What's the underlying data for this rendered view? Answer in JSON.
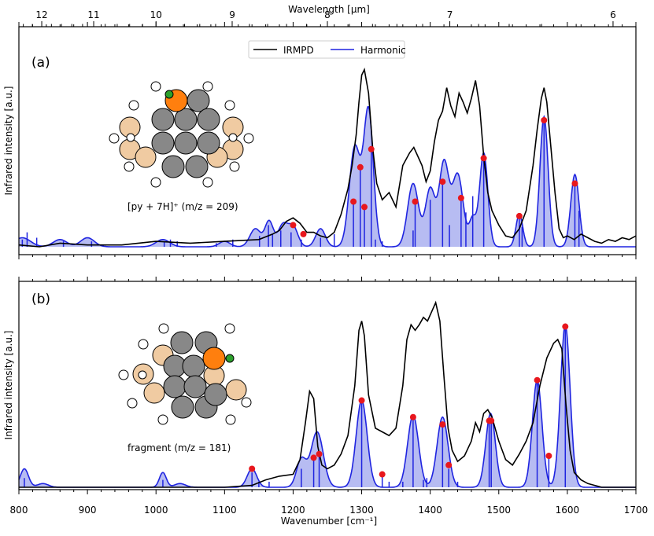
{
  "figure": {
    "top_axis_label": "Wavelength [μm]",
    "x_axis_label": "Wavenumber [cm⁻¹]",
    "y_axis_label": "Infrared intensity [a.u.]",
    "legend": {
      "irmpd": "IRMPD",
      "harmonic": "Harmonic"
    },
    "colors": {
      "irmpd": "#000000",
      "harmonic": "#1f24e0",
      "harmonic_fill": "#aab0f0",
      "marker": "#e8171d",
      "orange": "#ff7f0e",
      "beige": "#f0cba2",
      "gray": "#888888",
      "green": "#2ca02c"
    }
  },
  "chart_data": [
    {
      "type": "line",
      "panel_label": "(a)",
      "annotation": "[py + 7H]⁺ (m/z = 209)",
      "xlim": [
        800,
        1700
      ],
      "x_ticks": [
        800,
        900,
        1000,
        1100,
        1200,
        1300,
        1400,
        1500,
        1600,
        1700
      ],
      "top_ticks_um": [
        12,
        11,
        10,
        9,
        8,
        7,
        6
      ],
      "legend_position": "top-center",
      "series": [
        {
          "name": "IRMPD",
          "x": [
            800,
            830,
            860,
            900,
            950,
            1000,
            1050,
            1100,
            1150,
            1170,
            1180,
            1190,
            1200,
            1210,
            1220,
            1230,
            1240,
            1250,
            1260,
            1270,
            1280,
            1286,
            1292,
            1296,
            1300,
            1304,
            1310,
            1316,
            1322,
            1330,
            1340,
            1350,
            1360,
            1370,
            1376,
            1382,
            1388,
            1394,
            1400,
            1406,
            1412,
            1418,
            1424,
            1430,
            1436,
            1442,
            1448,
            1454,
            1460,
            1466,
            1472,
            1478,
            1484,
            1490,
            1500,
            1510,
            1520,
            1530,
            1540,
            1550,
            1556,
            1562,
            1566,
            1570,
            1576,
            1582,
            1588,
            1594,
            1600,
            1610,
            1620,
            1630,
            1640,
            1650,
            1660,
            1670,
            1680,
            1690,
            1700
          ],
          "y": [
            0.01,
            0.0,
            0.02,
            0.01,
            0.01,
            0.03,
            0.02,
            0.03,
            0.04,
            0.07,
            0.09,
            0.14,
            0.16,
            0.13,
            0.08,
            0.08,
            0.06,
            0.05,
            0.08,
            0.18,
            0.32,
            0.45,
            0.62,
            0.8,
            0.95,
            0.98,
            0.85,
            0.55,
            0.35,
            0.26,
            0.3,
            0.22,
            0.45,
            0.52,
            0.55,
            0.5,
            0.45,
            0.36,
            0.42,
            0.58,
            0.7,
            0.75,
            0.88,
            0.78,
            0.72,
            0.85,
            0.8,
            0.74,
            0.82,
            0.92,
            0.78,
            0.5,
            0.3,
            0.2,
            0.12,
            0.06,
            0.05,
            0.1,
            0.2,
            0.45,
            0.65,
            0.82,
            0.88,
            0.8,
            0.55,
            0.3,
            0.1,
            0.05,
            0.06,
            0.04,
            0.07,
            0.05,
            0.03,
            0.02,
            0.04,
            0.03,
            0.05,
            0.04,
            0.06
          ]
        },
        {
          "name": "Harmonic",
          "sticks": [
            [
              805,
              0.04
            ],
            [
              812,
              0.08
            ],
            [
              826,
              0.05
            ],
            [
              865,
              0.03
            ],
            [
              906,
              0.03
            ],
            [
              1012,
              0.03
            ],
            [
              1021,
              0.04
            ],
            [
              1031,
              0.03
            ],
            [
              1088,
              0.02
            ],
            [
              1112,
              0.04
            ],
            [
              1151,
              0.06
            ],
            [
              1164,
              0.12
            ],
            [
              1170,
              0.07
            ],
            [
              1182,
              0.09
            ],
            [
              1197,
              0.08
            ],
            [
              1212,
              0.04
            ],
            [
              1240,
              0.05
            ],
            [
              1260,
              0.07
            ],
            [
              1288,
              0.25
            ],
            [
              1298,
              0.44
            ],
            [
              1304,
              0.22
            ],
            [
              1314,
              0.54
            ],
            [
              1320,
              0.04
            ],
            [
              1330,
              0.03
            ],
            [
              1375,
              0.09
            ],
            [
              1378,
              0.25
            ],
            [
              1400,
              0.26
            ],
            [
              1418,
              0.36
            ],
            [
              1428,
              0.12
            ],
            [
              1445,
              0.27
            ],
            [
              1452,
              0.19
            ],
            [
              1462,
              0.28
            ],
            [
              1478,
              0.49
            ],
            [
              1530,
              0.17
            ],
            [
              1534,
              0.11
            ],
            [
              1566,
              0.7
            ],
            [
              1611,
              0.35
            ],
            [
              1617,
              0.2
            ]
          ],
          "markers": [
            [
              1200,
              0.12
            ],
            [
              1215,
              0.07
            ],
            [
              1288,
              0.25
            ],
            [
              1298,
              0.44
            ],
            [
              1304,
              0.22
            ],
            [
              1314,
              0.54
            ],
            [
              1378,
              0.25
            ],
            [
              1418,
              0.36
            ],
            [
              1445,
              0.27
            ],
            [
              1478,
              0.49
            ],
            [
              1530,
              0.17
            ],
            [
              1566,
              0.7
            ],
            [
              1611,
              0.35
            ]
          ],
          "envelope_peaks": [
            [
              805,
              0.05,
              12
            ],
            [
              860,
              0.04,
              10
            ],
            [
              900,
              0.05,
              10
            ],
            [
              1010,
              0.04,
              10
            ],
            [
              1100,
              0.03,
              8
            ],
            [
              1145,
              0.1,
              8
            ],
            [
              1165,
              0.14,
              6
            ],
            [
              1185,
              0.12,
              7
            ],
            [
              1200,
              0.11,
              7
            ],
            [
              1240,
              0.1,
              7
            ],
            [
              1290,
              0.55,
              8
            ],
            [
              1310,
              0.75,
              7
            ],
            [
              1375,
              0.35,
              8
            ],
            [
              1400,
              0.32,
              7
            ],
            [
              1420,
              0.46,
              7
            ],
            [
              1440,
              0.4,
              8
            ],
            [
              1462,
              0.15,
              5
            ],
            [
              1478,
              0.52,
              6
            ],
            [
              1530,
              0.18,
              5
            ],
            [
              1566,
              0.72,
              6
            ],
            [
              1611,
              0.4,
              6
            ]
          ]
        }
      ]
    },
    {
      "type": "line",
      "panel_label": "(b)",
      "annotation": "fragment (m/z = 181)",
      "xlim": [
        800,
        1700
      ],
      "x_ticks": [
        800,
        900,
        1000,
        1100,
        1200,
        1300,
        1400,
        1500,
        1600,
        1700
      ],
      "series": [
        {
          "name": "IRMPD",
          "x": [
            800,
            900,
            1000,
            1100,
            1140,
            1160,
            1180,
            1200,
            1210,
            1218,
            1224,
            1230,
            1236,
            1242,
            1250,
            1260,
            1270,
            1280,
            1290,
            1296,
            1300,
            1304,
            1310,
            1320,
            1330,
            1340,
            1350,
            1360,
            1366,
            1372,
            1378,
            1384,
            1390,
            1396,
            1402,
            1408,
            1414,
            1420,
            1426,
            1432,
            1440,
            1450,
            1460,
            1466,
            1472,
            1478,
            1484,
            1490,
            1500,
            1510,
            1520,
            1530,
            1540,
            1550,
            1560,
            1570,
            1580,
            1586,
            1592,
            1598,
            1604,
            1610,
            1620,
            1630,
            1640,
            1650,
            1670,
            1700
          ],
          "y": [
            0.0,
            0.0,
            0.0,
            0.0,
            0.01,
            0.04,
            0.06,
            0.07,
            0.15,
            0.35,
            0.52,
            0.48,
            0.22,
            0.12,
            0.1,
            0.12,
            0.18,
            0.28,
            0.55,
            0.85,
            0.9,
            0.82,
            0.5,
            0.32,
            0.3,
            0.28,
            0.32,
            0.55,
            0.8,
            0.88,
            0.85,
            0.88,
            0.92,
            0.9,
            0.95,
            1.0,
            0.9,
            0.6,
            0.32,
            0.2,
            0.14,
            0.17,
            0.25,
            0.35,
            0.3,
            0.4,
            0.42,
            0.38,
            0.25,
            0.15,
            0.12,
            0.18,
            0.25,
            0.35,
            0.55,
            0.7,
            0.78,
            0.8,
            0.75,
            0.45,
            0.2,
            0.08,
            0.04,
            0.02,
            0.01,
            0.0,
            0.0,
            0.0
          ]
        },
        {
          "name": "Harmonic",
          "sticks": [
            [
              808,
              0.05
            ],
            [
              1010,
              0.04
            ],
            [
              1140,
              0.08
            ],
            [
              1150,
              0.03
            ],
            [
              1165,
              0.03
            ],
            [
              1212,
              0.1
            ],
            [
              1230,
              0.15
            ],
            [
              1238,
              0.17
            ],
            [
              1300,
              0.47
            ],
            [
              1330,
              0.07
            ],
            [
              1340,
              0.03
            ],
            [
              1360,
              0.03
            ],
            [
              1375,
              0.39
            ],
            [
              1390,
              0.04
            ],
            [
              1395,
              0.05
            ],
            [
              1418,
              0.34
            ],
            [
              1427,
              0.1
            ],
            [
              1440,
              0.03
            ],
            [
              1486,
              0.36
            ],
            [
              1489,
              0.36
            ],
            [
              1556,
              0.58
            ],
            [
              1573,
              0.17
            ],
            [
              1597,
              0.87
            ]
          ],
          "markers": [
            [
              1140,
              0.1
            ],
            [
              1230,
              0.16
            ],
            [
              1238,
              0.18
            ],
            [
              1300,
              0.47
            ],
            [
              1330,
              0.07
            ],
            [
              1375,
              0.38
            ],
            [
              1418,
              0.34
            ],
            [
              1427,
              0.12
            ],
            [
              1486,
              0.36
            ],
            [
              1489,
              0.36
            ],
            [
              1556,
              0.58
            ],
            [
              1573,
              0.17
            ],
            [
              1597,
              0.87
            ]
          ],
          "envelope_peaks": [
            [
              808,
              0.1,
              6
            ],
            [
              835,
              0.02,
              8
            ],
            [
              1010,
              0.08,
              5
            ],
            [
              1035,
              0.02,
              8
            ],
            [
              1140,
              0.1,
              7
            ],
            [
              1212,
              0.15,
              7
            ],
            [
              1235,
              0.3,
              9
            ],
            [
              1300,
              0.47,
              8
            ],
            [
              1375,
              0.39,
              8
            ],
            [
              1418,
              0.38,
              8
            ],
            [
              1488,
              0.4,
              7
            ],
            [
              1556,
              0.58,
              7
            ],
            [
              1597,
              0.88,
              7
            ]
          ]
        }
      ]
    }
  ]
}
